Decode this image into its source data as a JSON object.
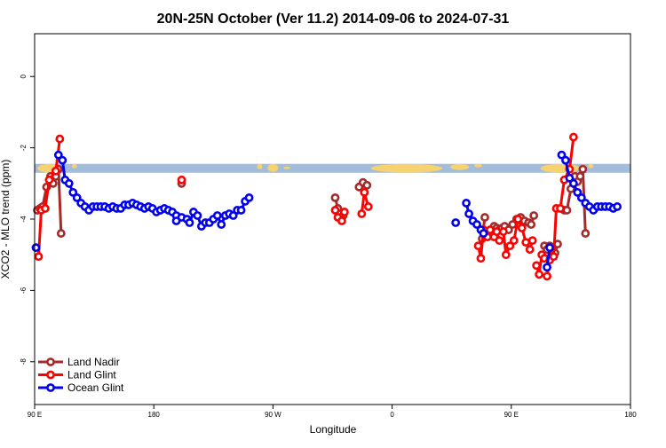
{
  "chart_data": {
    "type": "line",
    "title": "20N-25N October (Ver 11.2)   2014-09-06 to 2024-07-31",
    "xlabel": "Longitude",
    "ylabel": "XCO2 - MLO trend (ppm)",
    "xlim": [
      90,
      540
    ],
    "ylim": [
      -9.2,
      1.2
    ],
    "x_ticks": [
      {
        "value": 90,
        "label": "90 E"
      },
      {
        "value": 180,
        "label": "180"
      },
      {
        "value": 270,
        "label": "90 W"
      },
      {
        "value": 360,
        "label": "0"
      },
      {
        "value": 450,
        "label": "90 E"
      },
      {
        "value": 540,
        "label": "180"
      }
    ],
    "y_ticks": [
      {
        "value": 0,
        "label": "0"
      },
      {
        "value": -2,
        "label": "-2"
      },
      {
        "value": -4,
        "label": "-4"
      },
      {
        "value": -6,
        "label": "-6"
      },
      {
        "value": -8,
        "label": "-8"
      }
    ],
    "grid": false,
    "legend_position": "bottom-left",
    "colors": {
      "land_nadir": "#a52a2a",
      "land_glint": "#ff0000",
      "ocean_glint": "#0000ee",
      "map_ocean": "#a3bcdb",
      "map_land": "#f6d270"
    },
    "land_strip": {
      "y_top": -2.45,
      "y_bottom": -2.7
    },
    "series": [
      {
        "name": "Land Nadir",
        "color": "#a52a2a",
        "segments": [
          [
            [
              92,
              -3.75
            ],
            [
              94,
              -3.7
            ],
            [
              96,
              -3.65
            ],
            [
              99,
              -3.1
            ],
            [
              102,
              -2.8
            ],
            [
              104,
              -3.0
            ],
            [
              106,
              -2.8
            ],
            [
              108,
              -2.6
            ],
            [
              110,
              -4.4
            ]
          ],
          [
            [
              201,
              -3.0
            ]
          ],
          [
            [
              317,
              -3.4
            ],
            [
              319,
              -3.7
            ],
            [
              321,
              -3.85
            ],
            [
              323,
              -3.9
            ]
          ],
          [
            [
              335,
              -3.1
            ],
            [
              338,
              -2.97
            ],
            [
              341,
              -3.05
            ]
          ],
          [
            [
              428,
              -4.55
            ],
            [
              430,
              -3.95
            ]
          ],
          [
            [
              437,
              -4.2
            ],
            [
              439,
              -4.25
            ],
            [
              441,
              -4.3
            ]
          ],
          [
            [
              443,
              -4.25
            ],
            [
              445,
              -4.2
            ],
            [
              448,
              -4.3
            ],
            [
              451,
              -4.15
            ],
            [
              454,
              -4.0
            ],
            [
              457,
              -3.95
            ],
            [
              460,
              -4.05
            ]
          ],
          [
            [
              463,
              -4.1
            ],
            [
              465,
              -4.15
            ],
            [
              467,
              -3.9
            ]
          ],
          [
            [
              475,
              -4.75
            ],
            [
              477,
              -4.85
            ],
            [
              479,
              -4.75
            ],
            [
              481,
              -5.0
            ],
            [
              483,
              -4.95
            ],
            [
              485,
              -4.7
            ]
          ],
          [
            [
              490,
              -3.75
            ],
            [
              492,
              -3.75
            ],
            [
              495,
              -3.15
            ],
            [
              498,
              -2.8
            ],
            [
              500,
              -2.95
            ],
            [
              502,
              -2.8
            ],
            [
              504,
              -2.6
            ],
            [
              506,
              -4.4
            ]
          ]
        ]
      },
      {
        "name": "Land Glint",
        "color": "#ff0000",
        "segments": [
          [
            [
              93,
              -5.05
            ],
            [
              95,
              -3.75
            ],
            [
              98,
              -3.7
            ],
            [
              101,
              -2.9
            ],
            [
              106,
              -2.65
            ],
            [
              109,
              -1.75
            ]
          ],
          [
            [
              201,
              -2.9
            ]
          ],
          [
            [
              317,
              -3.75
            ],
            [
              319,
              -3.95
            ],
            [
              322,
              -4.05
            ],
            [
              324,
              -3.8
            ]
          ],
          [
            [
              337,
              -3.85
            ],
            [
              339,
              -3.25
            ],
            [
              342,
              -3.65
            ]
          ],
          [
            [
              425,
              -4.75
            ],
            [
              427,
              -5.1
            ],
            [
              429,
              -4.3
            ]
          ],
          [
            [
              432,
              -4.5
            ],
            [
              434,
              -4.3
            ]
          ],
          [
            [
              437,
              -4.5
            ],
            [
              439,
              -4.35
            ],
            [
              441,
              -4.6
            ]
          ],
          [
            [
              444,
              -4.35
            ],
            [
              446,
              -5.0
            ],
            [
              449,
              -4.75
            ],
            [
              452,
              -4.6
            ],
            [
              455,
              -4.0
            ],
            [
              458,
              -4.25
            ],
            [
              461,
              -4.65
            ],
            [
              464,
              -4.85
            ],
            [
              466,
              -4.6
            ]
          ],
          [
            [
              469,
              -5.3
            ],
            [
              471,
              -5.55
            ],
            [
              473,
              -5.0
            ],
            [
              475,
              -5.1
            ]
          ],
          [
            [
              477,
              -5.6
            ],
            [
              479,
              -5.15
            ],
            [
              482,
              -5.05
            ],
            [
              484,
              -3.7
            ],
            [
              487,
              -3.7
            ],
            [
              490,
              -2.9
            ],
            [
              494,
              -2.6
            ],
            [
              497,
              -1.7
            ]
          ]
        ]
      },
      {
        "name": "Ocean Glint",
        "color": "#0000ee",
        "segments": [
          [
            [
              91,
              -4.8
            ]
          ],
          [
            [
              108,
              -2.2
            ],
            [
              111,
              -2.35
            ],
            [
              113,
              -2.9
            ],
            [
              116,
              -3.0
            ],
            [
              119,
              -3.25
            ],
            [
              122,
              -3.4
            ],
            [
              125,
              -3.55
            ],
            [
              128,
              -3.65
            ],
            [
              131,
              -3.75
            ],
            [
              134,
              -3.65
            ],
            [
              137,
              -3.65
            ],
            [
              140,
              -3.65
            ],
            [
              143,
              -3.65
            ],
            [
              146,
              -3.7
            ],
            [
              149,
              -3.65
            ],
            [
              152,
              -3.7
            ],
            [
              155,
              -3.7
            ],
            [
              158,
              -3.6
            ],
            [
              161,
              -3.6
            ],
            [
              164,
              -3.55
            ],
            [
              167,
              -3.6
            ],
            [
              170,
              -3.65
            ],
            [
              173,
              -3.7
            ],
            [
              176,
              -3.65
            ],
            [
              179,
              -3.7
            ],
            [
              182,
              -3.8
            ],
            [
              185,
              -3.75
            ],
            [
              188,
              -3.7
            ],
            [
              191,
              -3.75
            ],
            [
              194,
              -3.8
            ],
            [
              197,
              -3.9
            ]
          ],
          [
            [
              197,
              -4.05
            ],
            [
              201,
              -3.95
            ],
            [
              205,
              -4.0
            ]
          ],
          [
            [
              207,
              -4.1
            ],
            [
              210,
              -3.8
            ],
            [
              213,
              -3.9
            ],
            [
              216,
              -4.2
            ],
            [
              219,
              -4.1
            ],
            [
              222,
              -4.1
            ],
            [
              225,
              -4.0
            ],
            [
              228,
              -3.9
            ],
            [
              231,
              -4.15
            ],
            [
              234,
              -3.9
            ],
            [
              237,
              -3.85
            ],
            [
              240,
              -3.9
            ],
            [
              243,
              -3.75
            ],
            [
              246,
              -3.75
            ],
            [
              249,
              -3.5
            ],
            [
              252,
              -3.4
            ]
          ],
          [
            [
              408,
              -4.1
            ]
          ],
          [
            [
              416,
              -3.55
            ],
            [
              418,
              -3.85
            ],
            [
              421,
              -4.05
            ],
            [
              424,
              -4.15
            ],
            [
              427,
              -4.3
            ],
            [
              429,
              -4.4
            ]
          ],
          [
            [
              477,
              -5.35
            ],
            [
              479,
              -4.8
            ]
          ],
          [
            [
              488,
              -2.2
            ],
            [
              491,
              -2.35
            ],
            [
              494,
              -2.85
            ],
            [
              497,
              -3.0
            ],
            [
              500,
              -3.25
            ],
            [
              503,
              -3.4
            ],
            [
              506,
              -3.55
            ],
            [
              509,
              -3.65
            ],
            [
              512,
              -3.75
            ],
            [
              515,
              -3.65
            ],
            [
              518,
              -3.65
            ],
            [
              521,
              -3.65
            ],
            [
              524,
              -3.65
            ],
            [
              527,
              -3.7
            ],
            [
              530,
              -3.65
            ]
          ]
        ]
      }
    ]
  }
}
